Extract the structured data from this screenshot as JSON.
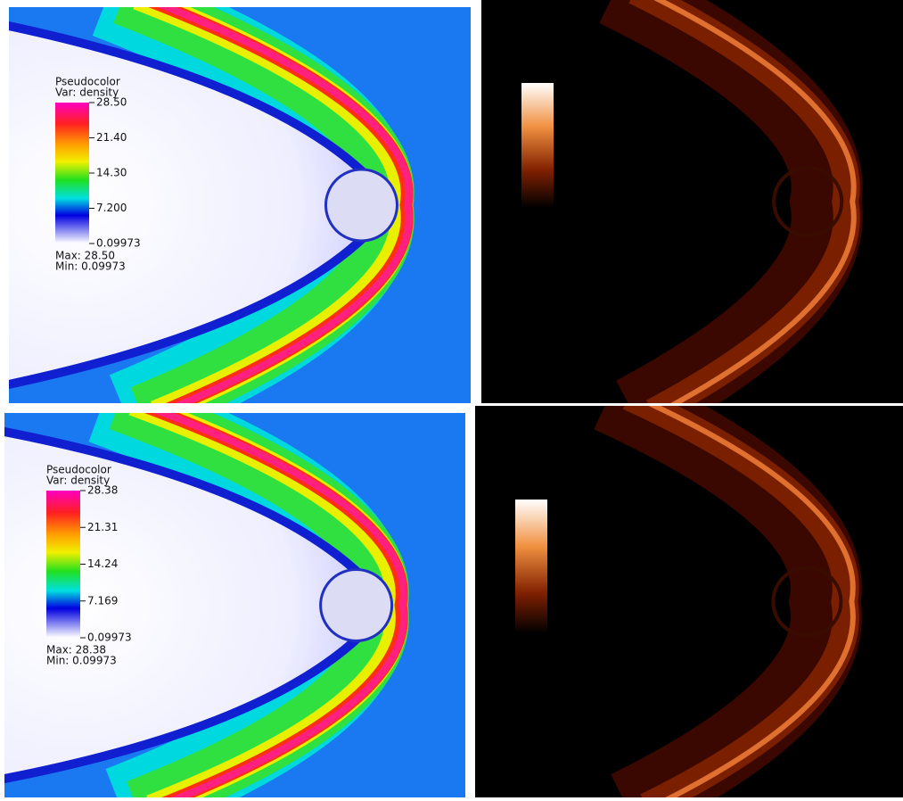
{
  "panels": [
    {
      "legend": {
        "title": "Pseudocolor",
        "variable": "Var: density",
        "ticks": [
          "28.50",
          "21.40",
          "14.30",
          "7.200",
          "0.09973"
        ],
        "max": "Max: 28.50",
        "min": "Min: 0.09973"
      }
    },
    {
      "legend": {
        "title": "Pseudocolor",
        "variable": "Var: density",
        "ticks": [
          "28.38",
          "21.31",
          "14.24",
          "7.169",
          "0.09973"
        ],
        "max": "Max: 28.38",
        "min": "Min: 0.09973"
      }
    }
  ]
}
